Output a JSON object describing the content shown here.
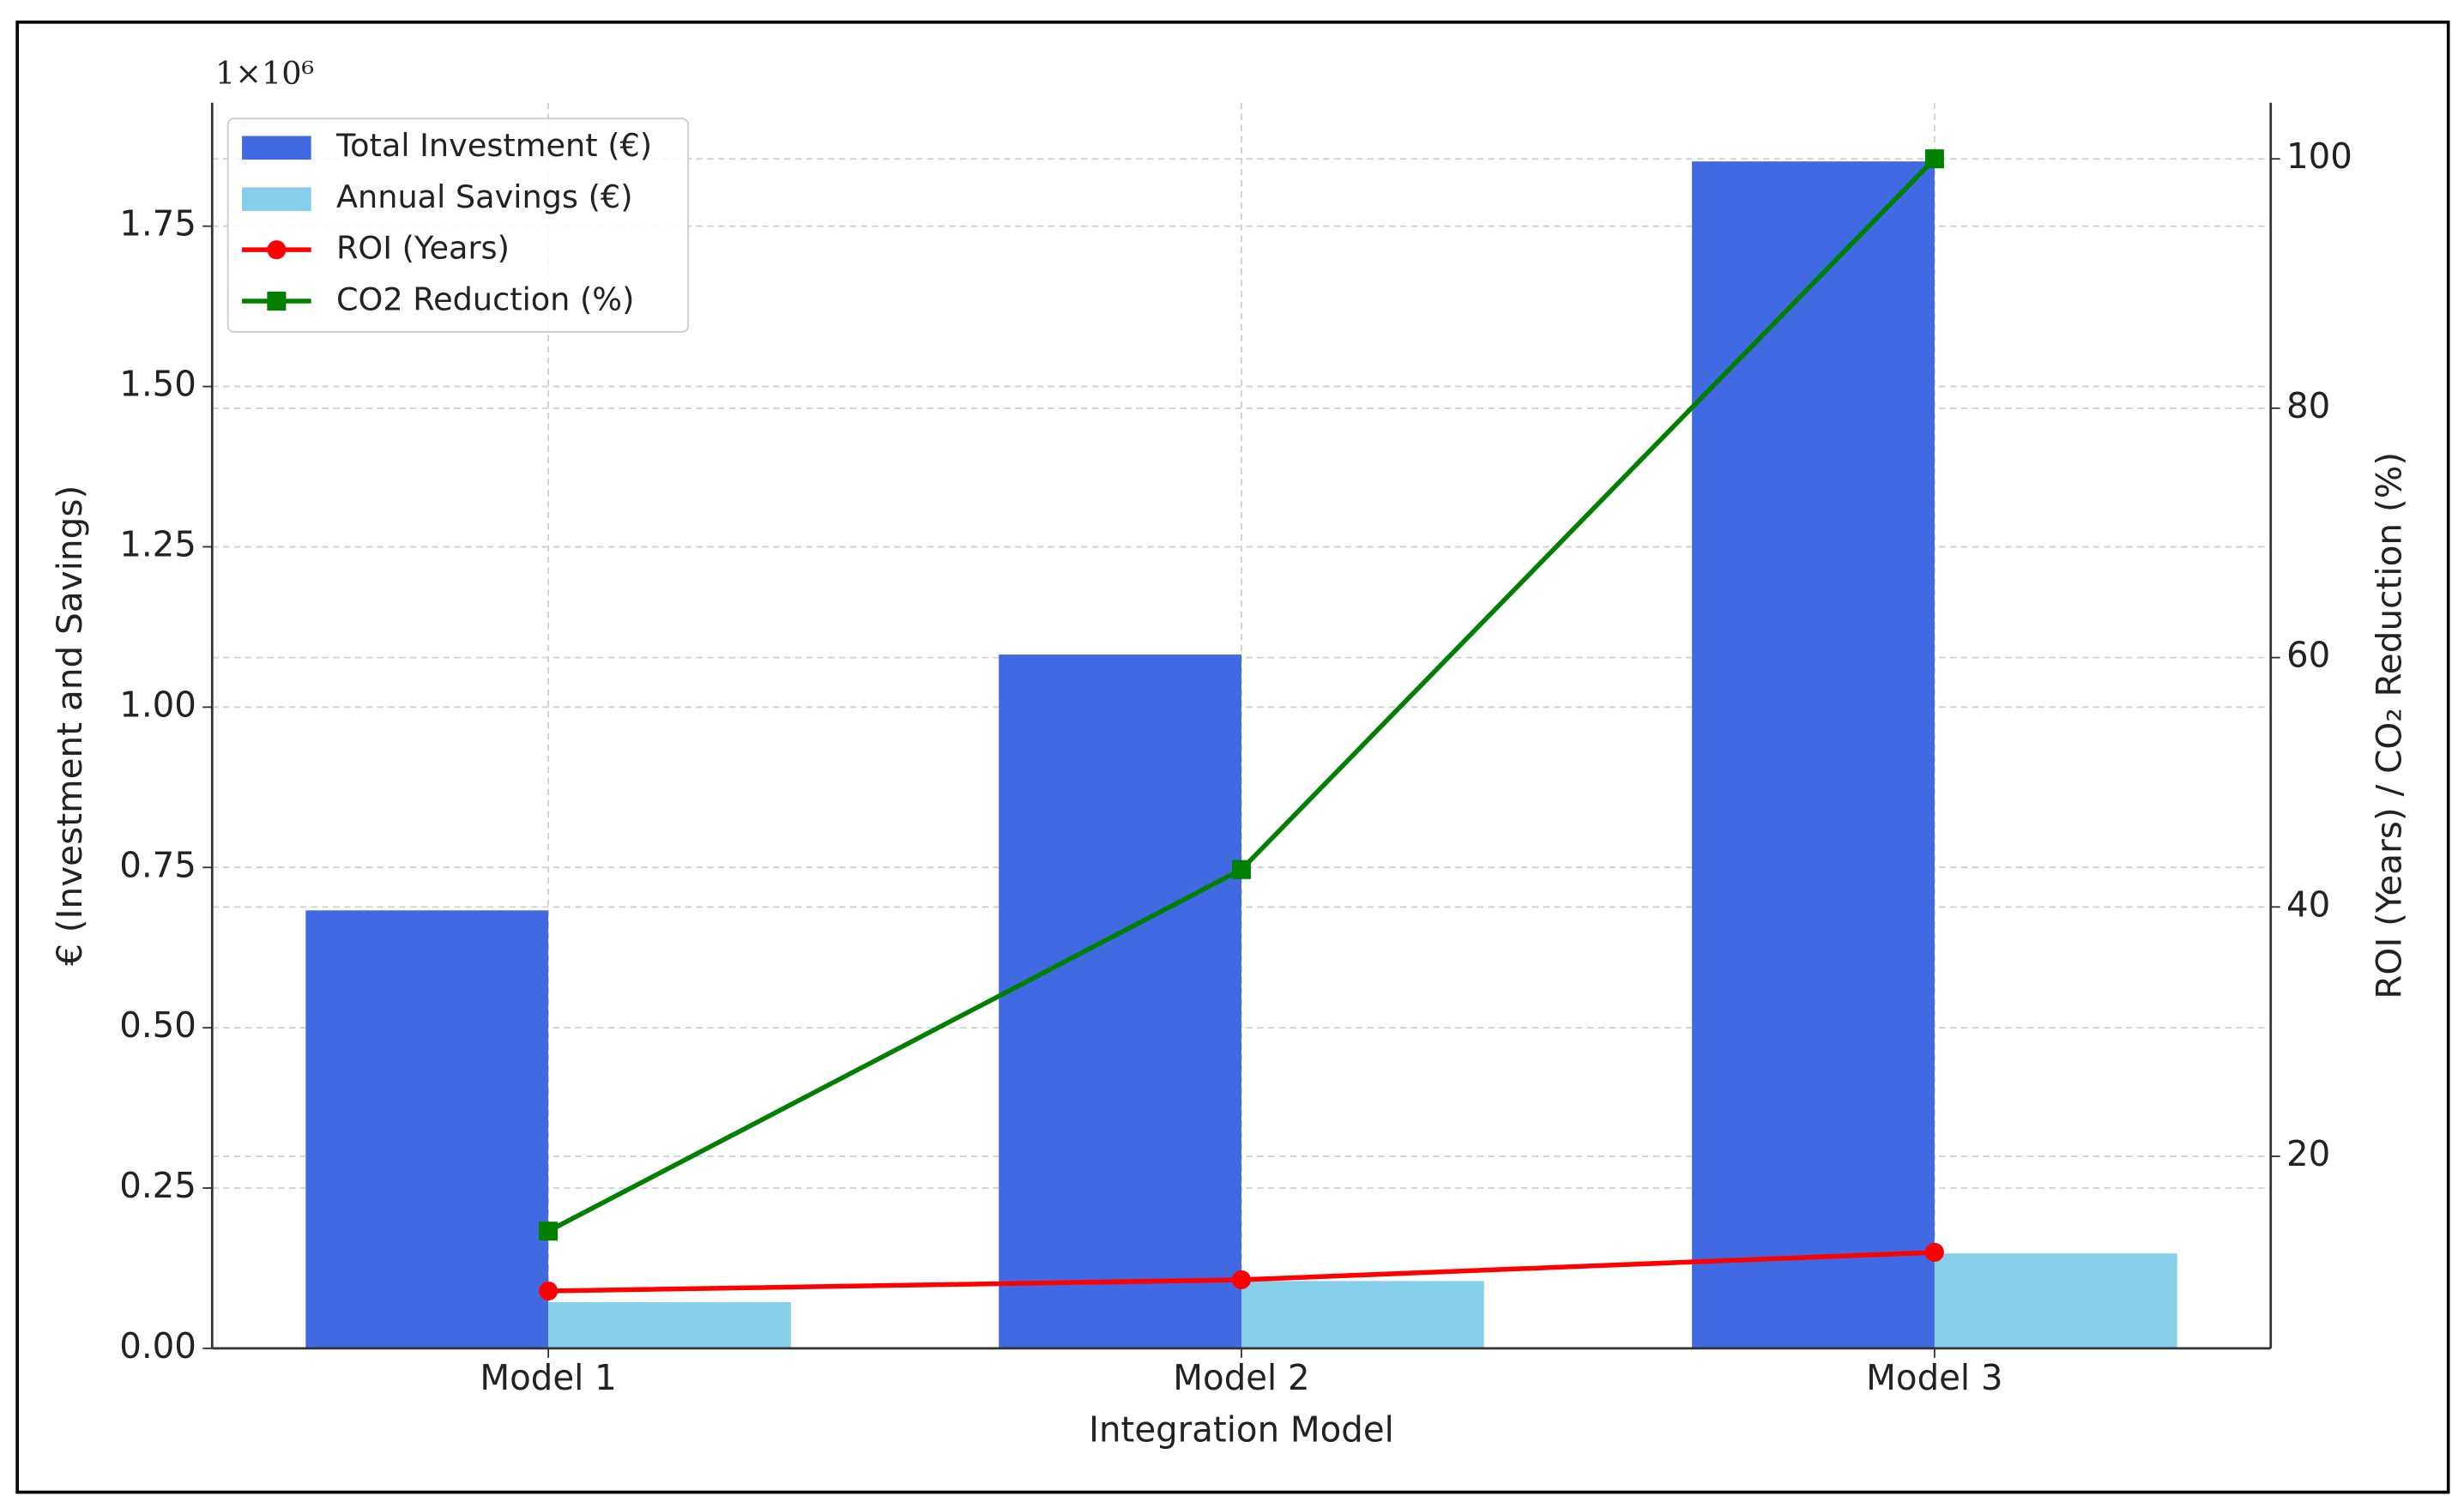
{
  "chart_data": {
    "type": "bar",
    "x_label": "Integration Model",
    "y_label": "€ (Investment and Savings)",
    "y2_label": "ROI (Years) / CO₂ Reduction (%)",
    "y_offset_label": "1×10⁶",
    "categories": [
      "Model 1",
      "Model 2",
      "Model 3"
    ],
    "series": [
      {
        "name": "Total Investment (€)",
        "type": "bar",
        "color": "#4169e1",
        "values": [
          683000,
          1082000,
          1851000
        ]
      },
      {
        "name": "Annual Savings (€)",
        "type": "bar",
        "color": "#87ceeb",
        "values": [
          72000,
          105000,
          148000
        ]
      },
      {
        "name": "ROI (Years)",
        "type": "line",
        "axis": "y2",
        "marker": "circle",
        "color": "#ff0000",
        "values": [
          9.2,
          10.1,
          12.3
        ]
      },
      {
        "name": "CO2 Reduction (%)",
        "type": "line",
        "axis": "y2",
        "marker": "square",
        "color": "#008000",
        "values": [
          14,
          43,
          100
        ]
      }
    ],
    "ylim": [
      0,
      1942500
    ],
    "yticks": [
      {
        "value": 0,
        "label": "0.00"
      },
      {
        "value": 250000,
        "label": "0.25"
      },
      {
        "value": 500000,
        "label": "0.50"
      },
      {
        "value": 750000,
        "label": "0.75"
      },
      {
        "value": 1000000,
        "label": "1.00"
      },
      {
        "value": 1250000,
        "label": "1.25"
      },
      {
        "value": 1500000,
        "label": "1.50"
      },
      {
        "value": 1750000,
        "label": "1.75"
      }
    ],
    "y2lim": [
      4.6,
      104.5
    ],
    "y2ticks": [
      20,
      40,
      60,
      80,
      100
    ],
    "grid": true,
    "legend": "upper left"
  }
}
